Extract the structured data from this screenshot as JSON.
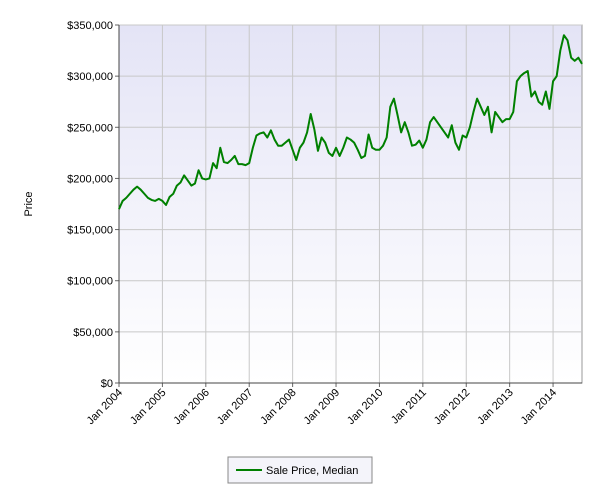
{
  "chart_data": {
    "type": "line",
    "y_label": "Price",
    "categories": [
      "Jan 2004",
      null,
      null,
      null,
      null,
      null,
      null,
      null,
      null,
      null,
      null,
      null,
      "Jan 2005",
      null,
      null,
      null,
      null,
      null,
      null,
      null,
      null,
      null,
      null,
      null,
      "Jan 2006",
      null,
      null,
      null,
      null,
      null,
      null,
      null,
      null,
      null,
      null,
      null,
      "Jan 2007",
      null,
      null,
      null,
      null,
      null,
      null,
      null,
      null,
      null,
      null,
      null,
      "Jan 2008",
      null,
      null,
      null,
      null,
      null,
      null,
      null,
      null,
      null,
      null,
      null,
      "Jan 2009",
      null,
      null,
      null,
      null,
      null,
      null,
      null,
      null,
      null,
      null,
      null,
      "Jan 2010",
      null,
      null,
      null,
      null,
      null,
      null,
      null,
      null,
      null,
      null,
      null,
      "Jan 2011",
      null,
      null,
      null,
      null,
      null,
      null,
      null,
      null,
      null,
      null,
      null,
      "Jan 2012",
      null,
      null,
      null,
      null,
      null,
      null,
      null,
      null,
      null,
      null,
      null,
      "Jan 2013",
      null,
      null,
      null,
      null,
      null,
      null,
      null,
      null,
      null,
      null,
      null,
      "Jan 2014",
      null,
      null,
      null,
      null,
      null,
      null,
      null,
      null
    ],
    "series": [
      {
        "name": "Sale Price, Median",
        "color": "#008000",
        "values": [
          170000,
          178000,
          181000,
          185000,
          189000,
          192000,
          189000,
          185000,
          181000,
          179000,
          178000,
          180000,
          178000,
          174000,
          182000,
          185000,
          193000,
          196000,
          203000,
          198000,
          193000,
          195000,
          208000,
          200000,
          199000,
          200000,
          215000,
          210000,
          230000,
          216000,
          215000,
          218000,
          222000,
          214000,
          214000,
          213000,
          215000,
          230000,
          242000,
          244000,
          245000,
          240000,
          247000,
          238000,
          232000,
          232000,
          235000,
          238000,
          228000,
          218000,
          230000,
          235000,
          245000,
          263000,
          248000,
          227000,
          240000,
          235000,
          225000,
          222000,
          230000,
          222000,
          230000,
          240000,
          238000,
          235000,
          228000,
          220000,
          222000,
          243000,
          230000,
          228000,
          228000,
          232000,
          240000,
          270000,
          278000,
          262000,
          245000,
          255000,
          245000,
          232000,
          233000,
          237000,
          230000,
          238000,
          255000,
          260000,
          255000,
          250000,
          245000,
          240000,
          252000,
          235000,
          228000,
          242000,
          240000,
          250000,
          265000,
          278000,
          270000,
          262000,
          270000,
          245000,
          265000,
          260000,
          255000,
          258000,
          258000,
          265000,
          295000,
          300000,
          303000,
          305000,
          280000,
          285000,
          275000,
          272000,
          285000,
          268000,
          295000,
          300000,
          325000,
          340000,
          335000,
          318000,
          315000,
          318000,
          312000
        ]
      }
    ],
    "ylim": [
      0,
      350000
    ],
    "yticks": [
      {
        "value": 0,
        "label": "$0"
      },
      {
        "value": 50000,
        "label": "$50,000"
      },
      {
        "value": 100000,
        "label": "$100,000"
      },
      {
        "value": 150000,
        "label": "$150,000"
      },
      {
        "value": 200000,
        "label": "$200,000"
      },
      {
        "value": 250000,
        "label": "$250,000"
      },
      {
        "value": 300000,
        "label": "$300,000"
      },
      {
        "value": 350000,
        "label": "$350,000"
      }
    ],
    "grid": true
  }
}
